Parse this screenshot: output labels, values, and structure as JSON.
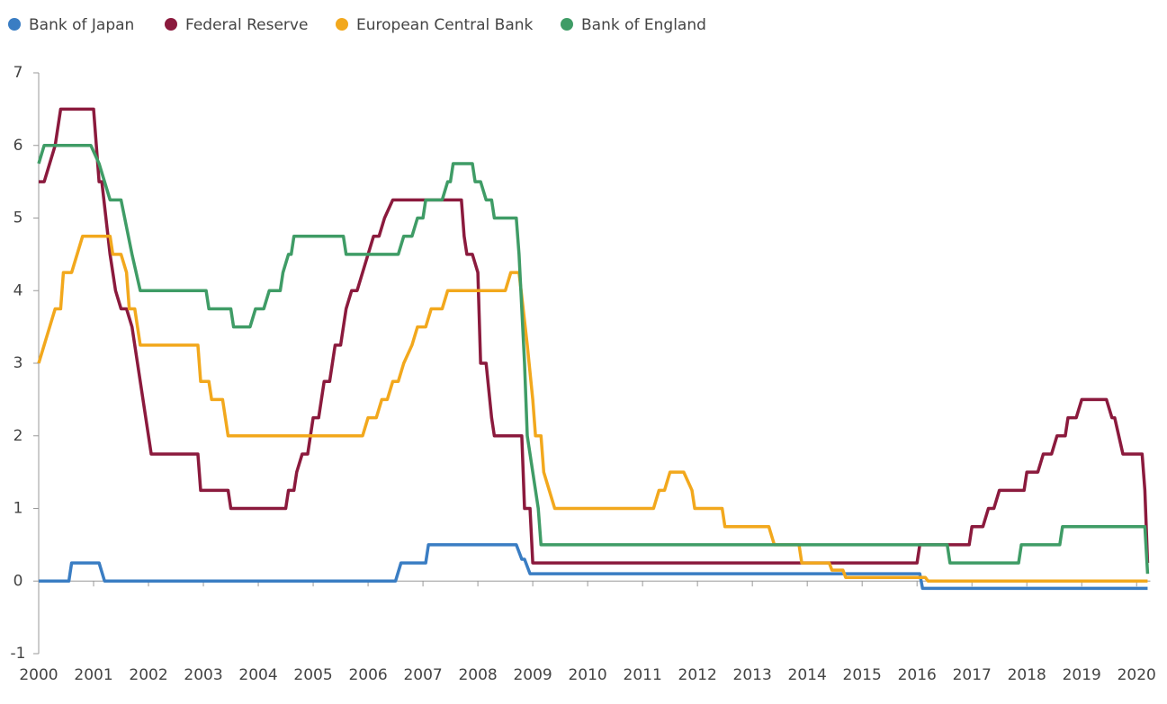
{
  "chart_data": {
    "type": "line",
    "xlim": [
      2000,
      2020.25
    ],
    "ylim": [
      -1,
      7
    ],
    "xticks": [
      2000,
      2001,
      2002,
      2003,
      2004,
      2005,
      2006,
      2007,
      2008,
      2009,
      2010,
      2011,
      2012,
      2013,
      2014,
      2015,
      2016,
      2017,
      2018,
      2019,
      2020
    ],
    "yticks": [
      -1,
      0,
      1,
      2,
      3,
      4,
      5,
      6,
      7
    ],
    "series": [
      {
        "name": "Bank of Japan",
        "color": "#3a7dc3",
        "x": [
          2000,
          2000.55,
          2000.6,
          2001.1,
          2001.2,
          2006.5,
          2006.6,
          2007.05,
          2007.1,
          2008.7,
          2008.8,
          2008.85,
          2008.95,
          2016.05,
          2016.1,
          2020.2
        ],
        "values": [
          0,
          0,
          0.25,
          0.25,
          0,
          0,
          0.25,
          0.25,
          0.5,
          0.5,
          0.3,
          0.3,
          0.1,
          0.1,
          -0.1,
          -0.1
        ]
      },
      {
        "name": "Federal Reserve",
        "color": "#8b1a3d",
        "x": [
          2000,
          2000.1,
          2000.2,
          2000.3,
          2000.4,
          2001.0,
          2001.05,
          2001.1,
          2001.15,
          2001.3,
          2001.4,
          2001.5,
          2001.6,
          2001.7,
          2001.8,
          2001.9,
          2002.0,
          2002.05,
          2002.9,
          2002.95,
          2003.45,
          2003.5,
          2004.5,
          2004.55,
          2004.65,
          2004.7,
          2004.8,
          2004.9,
          2005.0,
          2005.1,
          2005.2,
          2005.3,
          2005.4,
          2005.5,
          2005.6,
          2005.7,
          2005.8,
          2006.0,
          2006.1,
          2006.2,
          2006.3,
          2006.45,
          2007.7,
          2007.75,
          2007.8,
          2007.9,
          2008.0,
          2008.05,
          2008.15,
          2008.25,
          2008.3,
          2008.8,
          2008.85,
          2008.95,
          2009.0,
          2016.0,
          2016.05,
          2016.95,
          2017.0,
          2017.2,
          2017.3,
          2017.4,
          2017.5,
          2017.95,
          2018.0,
          2018.2,
          2018.3,
          2018.45,
          2018.55,
          2018.7,
          2018.75,
          2018.9,
          2019.0,
          2019.45,
          2019.55,
          2019.6,
          2019.75,
          2020.1,
          2020.15,
          2020.2
        ],
        "values": [
          5.5,
          5.5,
          5.75,
          6,
          6.5,
          6.5,
          6,
          5.5,
          5.5,
          4.5,
          4,
          3.75,
          3.75,
          3.5,
          3,
          2.5,
          2,
          1.75,
          1.75,
          1.25,
          1.25,
          1,
          1,
          1.25,
          1.25,
          1.5,
          1.75,
          1.75,
          2.25,
          2.25,
          2.75,
          2.75,
          3.25,
          3.25,
          3.75,
          4,
          4,
          4.5,
          4.75,
          4.75,
          5,
          5.25,
          5.25,
          4.75,
          4.5,
          4.5,
          4.25,
          3,
          3,
          2.25,
          2,
          2,
          1,
          1,
          0.25,
          0.25,
          0.5,
          0.5,
          0.75,
          0.75,
          1,
          1,
          1.25,
          1.25,
          1.5,
          1.5,
          1.75,
          1.75,
          2,
          2,
          2.25,
          2.25,
          2.5,
          2.5,
          2.25,
          2.25,
          1.75,
          1.75,
          1.25,
          0.25
        ]
      },
      {
        "name": "European Central Bank",
        "color": "#f2a81d",
        "x": [
          2000,
          2000.1,
          2000.2,
          2000.3,
          2000.4,
          2000.45,
          2000.6,
          2000.8,
          2001.3,
          2001.35,
          2001.5,
          2001.6,
          2001.65,
          2001.75,
          2001.85,
          2002.9,
          2002.95,
          2003.1,
          2003.15,
          2003.35,
          2003.45,
          2005.9,
          2006.0,
          2006.15,
          2006.25,
          2006.35,
          2006.45,
          2006.55,
          2006.65,
          2006.8,
          2006.9,
          2007.05,
          2007.15,
          2007.35,
          2007.45,
          2008.5,
          2008.6,
          2008.75,
          2008.9,
          2009.0,
          2009.05,
          2009.15,
          2009.2,
          2009.3,
          2009.4,
          2011.2,
          2011.3,
          2011.4,
          2011.5,
          2011.75,
          2011.9,
          2011.95,
          2012.45,
          2012.5,
          2013.3,
          2013.4,
          2013.85,
          2013.9,
          2014.4,
          2014.45,
          2014.65,
          2014.7,
          2016.15,
          2016.2,
          2020.2
        ],
        "values": [
          3,
          3.25,
          3.5,
          3.75,
          3.75,
          4.25,
          4.25,
          4.75,
          4.75,
          4.5,
          4.5,
          4.25,
          3.75,
          3.75,
          3.25,
          3.25,
          2.75,
          2.75,
          2.5,
          2.5,
          2,
          2,
          2.25,
          2.25,
          2.5,
          2.5,
          2.75,
          2.75,
          3,
          3.25,
          3.5,
          3.5,
          3.75,
          3.75,
          4,
          4,
          4.25,
          4.25,
          3.25,
          2.5,
          2,
          2,
          1.5,
          1.25,
          1,
          1,
          1.25,
          1.25,
          1.5,
          1.5,
          1.25,
          1,
          1,
          0.75,
          0.75,
          0.5,
          0.5,
          0.25,
          0.25,
          0.15,
          0.15,
          0.05,
          0.05,
          0,
          0
        ]
      },
      {
        "name": "Bank of England",
        "color": "#3f9c66",
        "x": [
          2000,
          2000.1,
          2000.95,
          2001.1,
          2001.3,
          2001.5,
          2001.7,
          2001.85,
          2003.05,
          2003.1,
          2003.5,
          2003.55,
          2003.85,
          2003.95,
          2004.1,
          2004.2,
          2004.4,
          2004.45,
          2004.55,
          2004.6,
          2004.65,
          2005.55,
          2005.6,
          2006.55,
          2006.65,
          2006.8,
          2006.9,
          2007.0,
          2007.05,
          2007.35,
          2007.45,
          2007.5,
          2007.55,
          2007.9,
          2007.95,
          2008.05,
          2008.15,
          2008.25,
          2008.3,
          2008.7,
          2008.75,
          2008.85,
          2008.9,
          2009.0,
          2009.1,
          2009.15,
          2016.55,
          2016.6,
          2017.85,
          2017.9,
          2018.6,
          2018.65,
          2020.15,
          2020.2
        ],
        "values": [
          5.75,
          6,
          6,
          5.75,
          5.25,
          5.25,
          4.5,
          4,
          4,
          3.75,
          3.75,
          3.5,
          3.5,
          3.75,
          3.75,
          4,
          4,
          4.25,
          4.5,
          4.5,
          4.75,
          4.75,
          4.5,
          4.5,
          4.75,
          4.75,
          5,
          5,
          5.25,
          5.25,
          5.5,
          5.5,
          5.75,
          5.75,
          5.5,
          5.5,
          5.25,
          5.25,
          5,
          5,
          4.5,
          3,
          2,
          1.5,
          1,
          0.5,
          0.5,
          0.25,
          0.25,
          0.5,
          0.5,
          0.75,
          0.75,
          0.1
        ]
      }
    ]
  }
}
